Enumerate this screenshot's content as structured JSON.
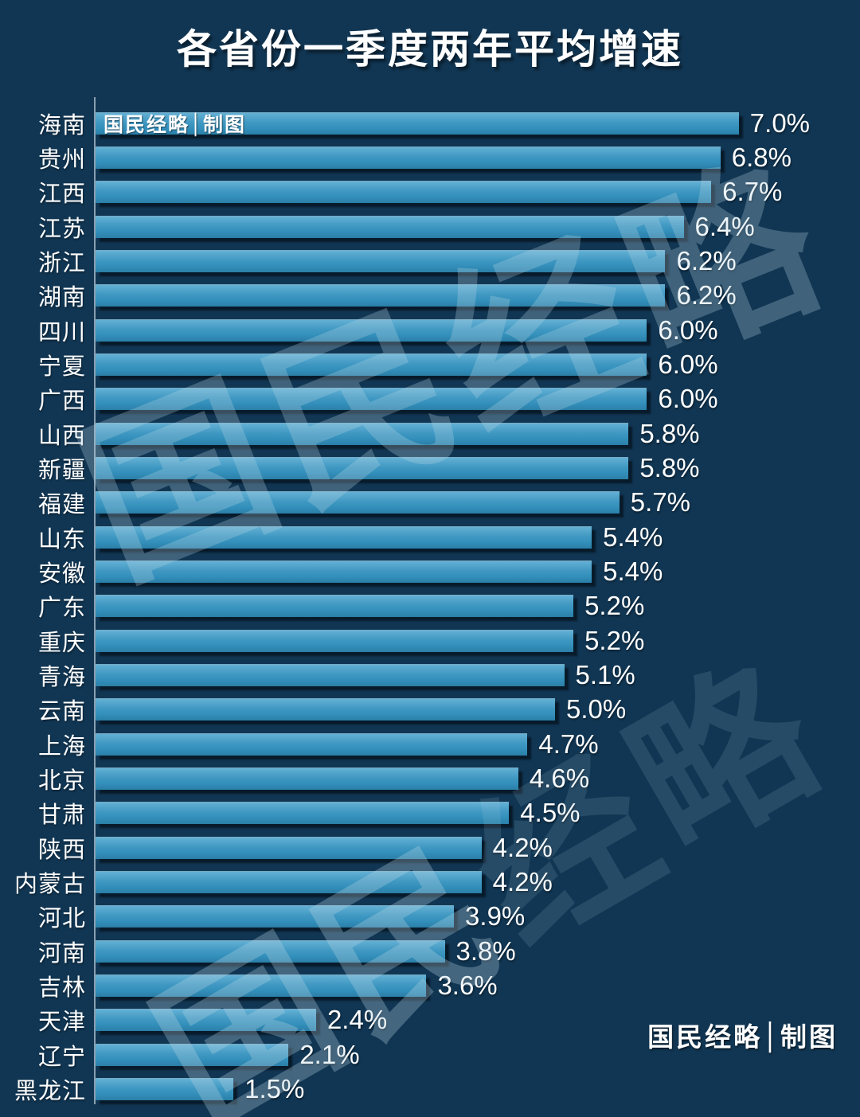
{
  "title": "各省份一季度两年平均增速",
  "credits": {
    "top": "国民经略│制图",
    "bottom": "国民经略│制图"
  },
  "watermark": {
    "full_text": "国民经略",
    "bright_pair": "国民",
    "dim_pair": "经略"
  },
  "colors": {
    "background": "#113653",
    "bar_gradient_top": "#63b0d4",
    "bar_gradient_mid": "#3390bb",
    "bar_gradient_bottom": "#2a7ea7",
    "bar_shadow": "#04101c",
    "axis_line": "#9fb2c0",
    "text": "#ffffff"
  },
  "chart_data": {
    "type": "bar",
    "orientation": "horizontal",
    "title": "各省份一季度两年平均增速",
    "xlabel": "",
    "ylabel": "",
    "unit": "%",
    "xlim": [
      0,
      7.5
    ],
    "grid": false,
    "legend": false,
    "categories": [
      "海南",
      "贵州",
      "江西",
      "江苏",
      "浙江",
      "湖南",
      "四川",
      "宁夏",
      "广西",
      "山西",
      "新疆",
      "福建",
      "山东",
      "安徽",
      "广东",
      "重庆",
      "青海",
      "云南",
      "上海",
      "北京",
      "甘肃",
      "陕西",
      "内蒙古",
      "河北",
      "河南",
      "吉林",
      "天津",
      "辽宁",
      "黑龙江"
    ],
    "values": [
      7.0,
      6.8,
      6.7,
      6.4,
      6.2,
      6.2,
      6.0,
      6.0,
      6.0,
      5.8,
      5.8,
      5.7,
      5.4,
      5.4,
      5.2,
      5.2,
      5.1,
      5.0,
      4.7,
      4.6,
      4.5,
      4.2,
      4.2,
      3.9,
      3.8,
      3.6,
      2.4,
      2.1,
      1.5
    ],
    "value_labels": [
      "7.0%",
      "6.8%",
      "6.7%",
      "6.4%",
      "6.2%",
      "6.2%",
      "6.0%",
      "6.0%",
      "6.0%",
      "5.8%",
      "5.8%",
      "5.7%",
      "5.4%",
      "5.4%",
      "5.2%",
      "5.2%",
      "5.1%",
      "5.0%",
      "4.7%",
      "4.6%",
      "4.5%",
      "4.2%",
      "4.2%",
      "3.9%",
      "3.8%",
      "3.6%",
      "2.4%",
      "2.1%",
      "1.5%"
    ]
  }
}
